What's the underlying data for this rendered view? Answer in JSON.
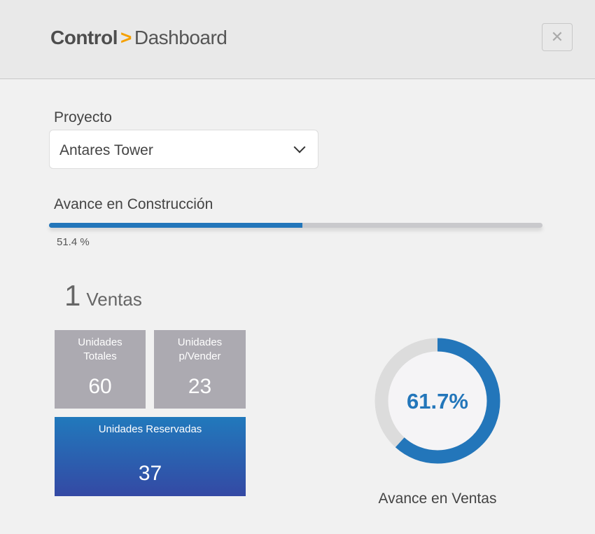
{
  "header": {
    "title_part1": "Control",
    "separator": ">",
    "title_part2": "Dashboard",
    "close_icon": "close-icon"
  },
  "project": {
    "label": "Proyecto",
    "selected": "Antares Tower"
  },
  "construction": {
    "label": "Avance en Construcción",
    "progress_percent": 51.4,
    "progress_text": "51.4 %"
  },
  "sales": {
    "count": "1",
    "label": "Ventas"
  },
  "tiles": [
    {
      "title": "Unidades Totales",
      "value": "60"
    },
    {
      "title": "Unidades p/Vender",
      "value": "23"
    },
    {
      "title": "Unidades Reservadas",
      "value": "37"
    }
  ],
  "donut": {
    "value_percent": 61.7,
    "text": "61.7%",
    "label": "Avance en Ventas",
    "color": "#2376ba",
    "track": "#dcdcdc"
  }
}
